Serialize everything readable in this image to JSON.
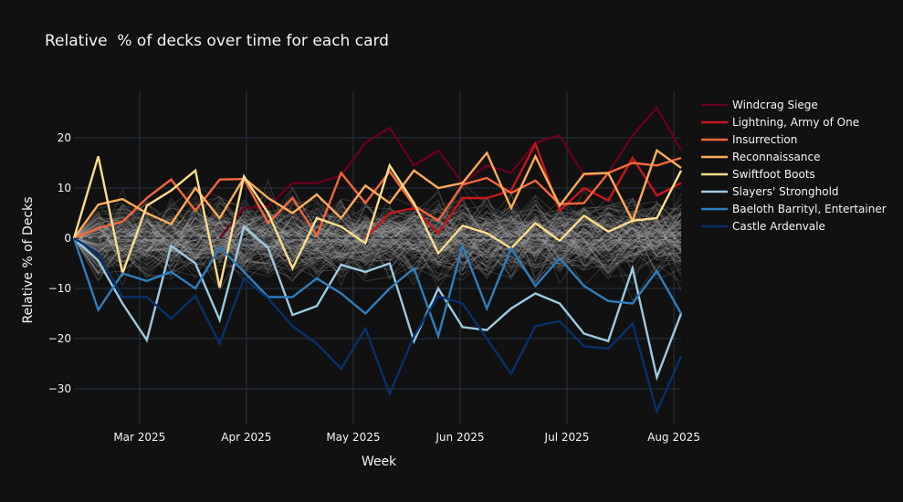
{
  "chart_data": {
    "type": "line",
    "title": "Relative  % of decks over time for each card",
    "xlabel": "Week",
    "ylabel": "Relative % of Decks",
    "x_tick_labels": [
      "Mar 2025",
      "Apr 2025",
      "May 2025",
      "Jun 2025",
      "Jul 2025",
      "Aug 2025"
    ],
    "x_tick_week_index": [
      2.7,
      7.1,
      11.5,
      15.9,
      20.3,
      24.7
    ],
    "y_ticks": [
      20,
      10,
      0,
      -10,
      -20,
      -30
    ],
    "y_tick_labels": [
      "20",
      "10",
      "0",
      "−10",
      "−20",
      "−30"
    ],
    "ylim": [
      -37.5,
      29
    ],
    "x_week_count": 26,
    "grid": true,
    "zero_line": "dashed",
    "legend_position": "right",
    "background_series": {
      "count": 120,
      "color": "#b0b0b0",
      "description_visible": false
    },
    "series": [
      {
        "name": "Windcrag Siege",
        "color": "#67001f",
        "start_index": 6,
        "values": [
          0,
          6,
          6.3,
          11,
          11,
          12.5,
          19,
          22,
          14.5,
          17.5,
          11,
          14.5,
          13,
          19,
          20.5,
          12.5,
          13,
          20.5,
          26,
          17.5
        ]
      },
      {
        "name": "Lightning, Army of One",
        "color": "#c9151c",
        "start_index": 12,
        "values": [
          0,
          5,
          6,
          1,
          8,
          8,
          9.5,
          18.8,
          5.5,
          10,
          7.5,
          16,
          8.5,
          11
        ]
      },
      {
        "name": "Insurrection",
        "color": "#f4673b",
        "start_index": 0,
        "values": [
          0,
          2,
          3.3,
          8,
          11.7,
          5.5,
          11.7,
          11.8,
          3,
          8,
          0.5,
          13,
          7,
          13.3,
          6.5,
          3.5,
          10.7,
          12,
          9,
          11.5,
          6.8,
          7,
          13,
          15,
          14.5,
          16
        ]
      },
      {
        "name": "Reconnaissance",
        "color": "#fdac59",
        "start_index": 0,
        "values": [
          0,
          6.7,
          7.8,
          5,
          2.8,
          10,
          4,
          12,
          8,
          5,
          8.7,
          4,
          10.5,
          7,
          13.5,
          10,
          11,
          17,
          6,
          16.3,
          6.5,
          12.8,
          13,
          3.5,
          17.5,
          14
        ]
      },
      {
        "name": "Swiftfoot Boots",
        "color": "#fedd8d",
        "start_index": 0,
        "values": [
          0,
          16.3,
          -7,
          6.5,
          9.5,
          13.5,
          -9.8,
          12.3,
          5,
          -6,
          4,
          2.3,
          -1,
          14.5,
          7,
          -3,
          2.5,
          1,
          -2,
          3,
          -0.5,
          4.5,
          1.3,
          3.5,
          4,
          13.5
        ]
      },
      {
        "name": "Slayers' Stronghold",
        "color": "#9ecae1",
        "start_index": 0,
        "values": [
          0,
          -4.5,
          -13,
          -20.3,
          -1.5,
          -5,
          -16.3,
          2.3,
          -2,
          -15.3,
          -13.5,
          -5.3,
          -6.7,
          -5,
          -20.5,
          -10,
          -17.7,
          -18.3,
          -14,
          -11,
          -13,
          -19,
          -20.5,
          -6,
          -27.7,
          -15
        ]
      },
      {
        "name": "Baeloth Barrityl, Entertainer",
        "color": "#2f7ebc",
        "start_index": 0,
        "values": [
          0,
          -14.3,
          -7,
          -8.5,
          -6.7,
          -10,
          -1.8,
          -6.7,
          -11.7,
          -11.7,
          -8,
          -11,
          -15,
          -10,
          -6,
          -19.5,
          -1.5,
          -14,
          -2,
          -9.5,
          -4,
          -9.5,
          -12.5,
          -13,
          -6.5,
          -15
        ]
      },
      {
        "name": "Castle Ardenvale",
        "color": "#08306b",
        "start_index": 0,
        "values": [
          0,
          -3,
          -11.7,
          -11.7,
          -16,
          -11.5,
          -21,
          -8,
          -12,
          -17.5,
          -21,
          -26,
          -18,
          -31,
          -19.5,
          -11.5,
          -13,
          -20,
          -27,
          -17.5,
          -16.5,
          -21.5,
          -22,
          -17,
          -34.5,
          -23.5
        ]
      }
    ]
  }
}
